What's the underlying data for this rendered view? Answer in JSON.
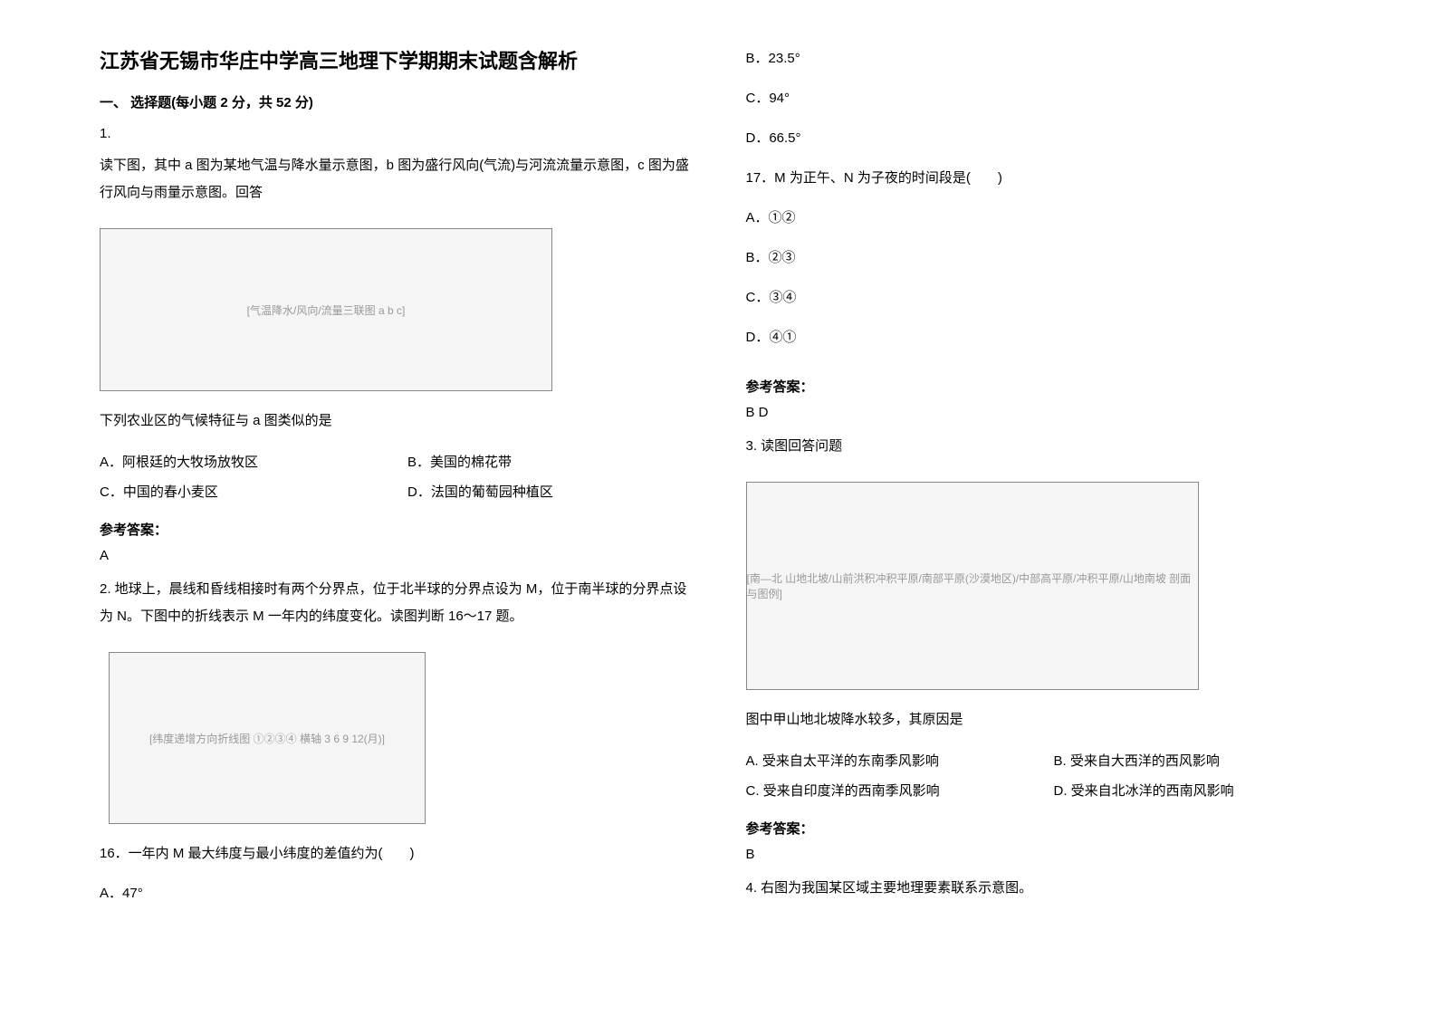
{
  "title": "江苏省无锡市华庄中学高三地理下学期期末试题含解析",
  "section1": "一、 选择题(每小题 2 分，共 52 分)",
  "q1": {
    "num": "1.",
    "text": "读下图，其中 a 图为某地气温与降水量示意图，b 图为盛行风向(气流)与河流流量示意图，c 图为盛行风向与雨量示意图。回答",
    "imgAlt": "[气温降水/风向/流量三联图 a b c]",
    "sub": "下列农业区的气候特征与 a 图类似的是",
    "optA": "A．阿根廷的大牧场放牧区",
    "optB": "B．美国的棉花带",
    "optC": "C．中国的春小麦区",
    "optD": "D．法国的葡萄园种植区",
    "ansLabel": "参考答案：",
    "ans": "A"
  },
  "q2": {
    "text": "2. 地球上，晨线和昏线相接时有两个分界点，位于北半球的分界点设为 M，位于南半球的分界点设为 N。下图中的折线表示 M 一年内的纬度变化。读图判断 16～17 题。",
    "imgAlt": "[纬度递增方向折线图 ①②③④ 横轴 3 6 9 12(月)]",
    "q16": "16．一年内 M 最大纬度与最小纬度的差值约为(　　)",
    "optA16": "A．47°",
    "optB16": "B．23.5°",
    "optC16": "C．94°",
    "optD16": "D．66.5°",
    "q17": "17．M 为正午、N 为子夜的时间段是(　　)",
    "optA17": "A．①②",
    "optB17": "B．②③",
    "optC17": "C．③④",
    "optD17": "D．④①",
    "ansLabel": "参考答案：",
    "ans": "B D"
  },
  "q3": {
    "text": "3. 读图回答问题",
    "imgAlt": "[南—北 山地北坡/山前洪积冲积平原/南部平原(沙漠地区)/中部高平原/冲积平原/山地南坡 剖面与图例]",
    "sub": "图中甲山地北坡降水较多，其原因是",
    "optA": "A. 受来自太平洋的东南季风影响",
    "optB": "B. 受来自大西洋的西风影响",
    "optC": "C. 受来自印度洋的西南季风影响",
    "optD": "D. 受来自北冰洋的西南风影响",
    "ansLabel": "参考答案：",
    "ans": "B"
  },
  "q4": {
    "text": "4. 右图为我国某区域主要地理要素联系示意图。"
  }
}
